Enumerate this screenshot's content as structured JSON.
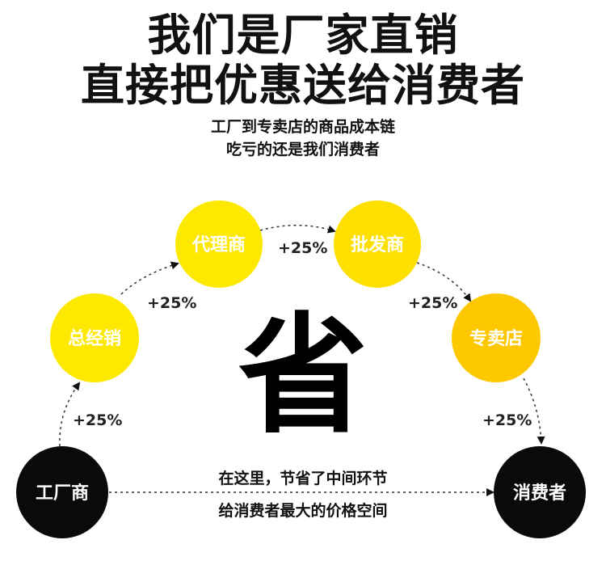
{
  "headline": {
    "line1": "我们是厂家直销",
    "line2": "直接把优惠送给消费者"
  },
  "subheadline": {
    "line1": "工厂到专卖店的商品成本链",
    "line2": "吃亏的还是我们消费者"
  },
  "nodes": {
    "factory": "工厂商",
    "general_distributor": "总经销",
    "agent": "代理商",
    "wholesaler": "批发商",
    "store": "专卖店",
    "consumer": "消费者"
  },
  "markups": {
    "factory_to_general": "+25%",
    "general_to_agent": "+25%",
    "agent_to_wholesaler": "+25%",
    "wholesaler_to_store": "+25%",
    "store_to_consumer": "+25%"
  },
  "center_char": "省",
  "savings_note": {
    "line1": "在这里，节省了中间环节",
    "line2": "给消费者最大的价格空间"
  },
  "colors": {
    "yellow_node": "#fde900",
    "orange_node": "#fdc800",
    "black_node": "#0a0a0a",
    "text_dark": "#111111"
  }
}
